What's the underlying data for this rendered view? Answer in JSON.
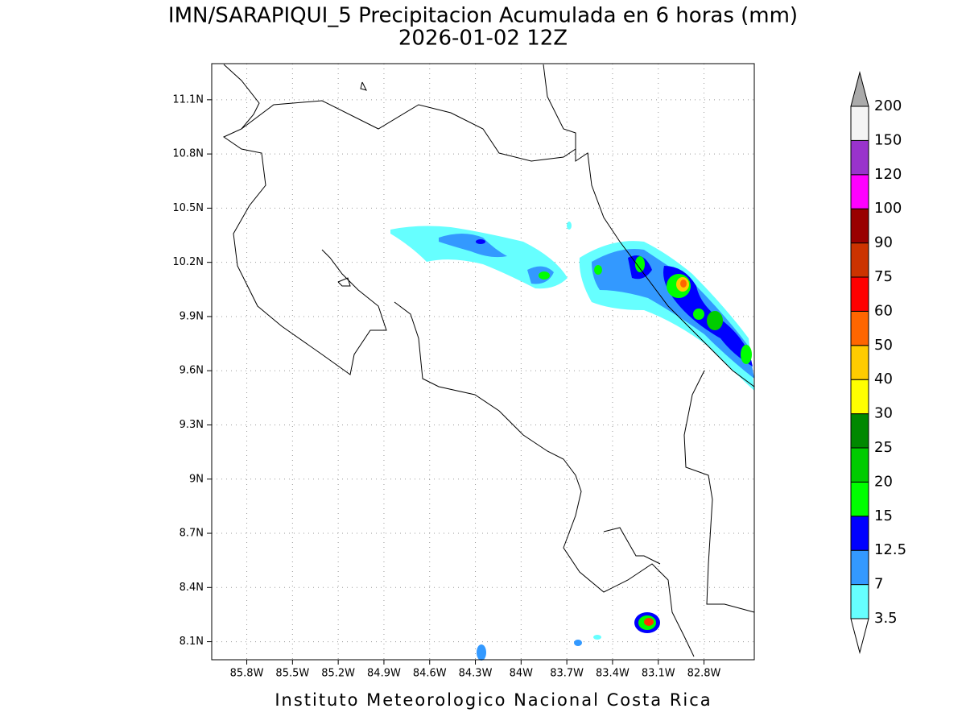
{
  "title": "IMN/SARAPIQUI_5 Precipitacion Acumulada en 6 horas (mm)",
  "subtitle": "2026-01-02 12Z",
  "footer": "Instituto Meteorologico Nacional Costa Rica",
  "map": {
    "lonlim": [
      -86.03,
      -82.47
    ],
    "latlim": [
      8.0,
      11.3
    ],
    "grid": true,
    "lonticks": [
      {
        "value": -85.8,
        "label": "85.8W"
      },
      {
        "value": -85.5,
        "label": "85.5W"
      },
      {
        "value": -85.2,
        "label": "85.2W"
      },
      {
        "value": -84.9,
        "label": "84.9W"
      },
      {
        "value": -84.6,
        "label": "84.6W"
      },
      {
        "value": -84.3,
        "label": "84.3W"
      },
      {
        "value": -84.0,
        "label": "84W"
      },
      {
        "value": -83.7,
        "label": "83.7W"
      },
      {
        "value": -83.4,
        "label": "83.4W"
      },
      {
        "value": -83.1,
        "label": "83.1W"
      },
      {
        "value": -82.8,
        "label": "82.8W"
      }
    ],
    "latticks": [
      {
        "value": 8.1,
        "label": "8.1N"
      },
      {
        "value": 8.4,
        "label": "8.4N"
      },
      {
        "value": 8.7,
        "label": "8.7N"
      },
      {
        "value": 9.0,
        "label": "9N"
      },
      {
        "value": 9.3,
        "label": "9.3N"
      },
      {
        "value": 9.6,
        "label": "9.6N"
      },
      {
        "value": 9.9,
        "label": "9.9N"
      },
      {
        "value": 10.2,
        "label": "10.2N"
      },
      {
        "value": 10.5,
        "label": "10.5N"
      },
      {
        "value": 10.8,
        "label": "10.8N"
      },
      {
        "value": 11.1,
        "label": "11.1N"
      }
    ]
  },
  "colorbar": {
    "levels": [
      3.5,
      7,
      12.5,
      15,
      20,
      25,
      30,
      40,
      50,
      60,
      75,
      90,
      100,
      120,
      150,
      200
    ],
    "colors": [
      "#66ffff",
      "#3399ff",
      "#0000ff",
      "#00ff00",
      "#00cc00",
      "#008800",
      "#ffff00",
      "#ffcc00",
      "#ff6600",
      "#ff0000",
      "#cc3300",
      "#990000",
      "#ff00ff",
      "#9933cc",
      "#f4f4f4"
    ],
    "under_color": "#ffffff",
    "over_color": "#aaaaaa"
  }
}
